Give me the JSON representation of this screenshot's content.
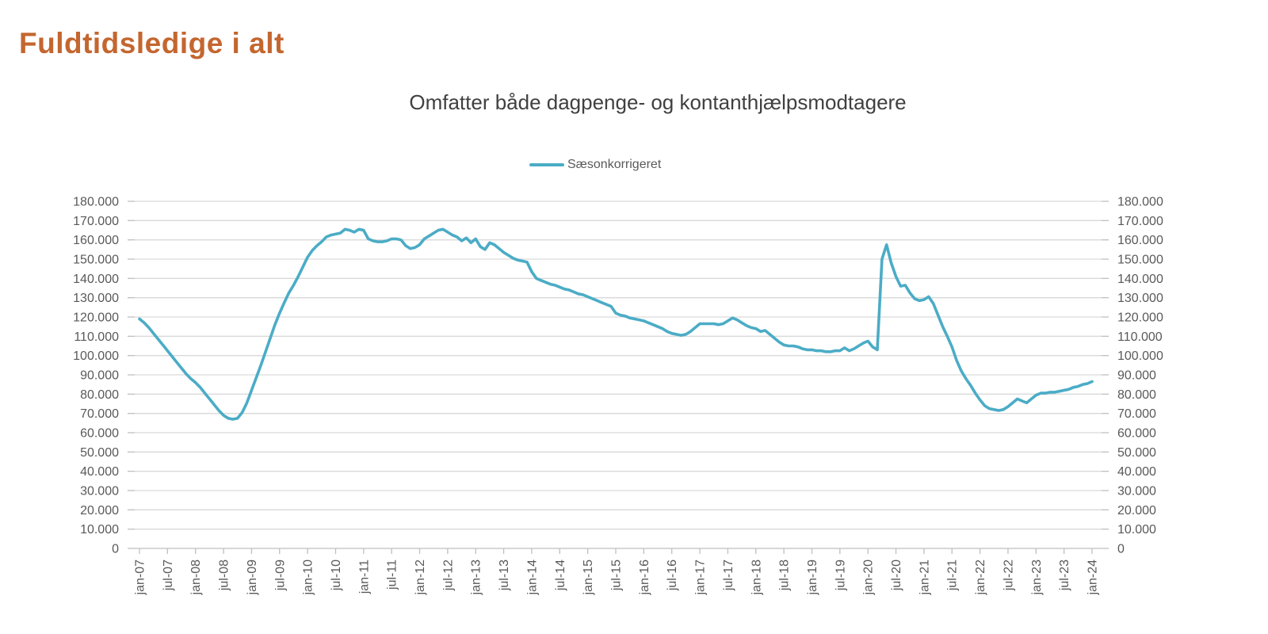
{
  "page": {
    "title": "Fuldtidsledige i alt",
    "title_color": "#C4662F"
  },
  "chart": {
    "subtitle": "Omfatter både dagpenge- og kontanthjælpsmodtagere",
    "legend": {
      "label": "Sæsonkorrigeret",
      "color": "#4BACC6"
    },
    "colors": {
      "line": "#4BACC6",
      "gridline": "#D9D9D9",
      "axis": "#BFBFBF",
      "tick_label": "#595959"
    },
    "y_axis": {
      "min": 0,
      "max": 180000,
      "step": 10000,
      "tick_labels_top_to_bottom": [
        "180.000",
        "170.000",
        "160.000",
        "150.000",
        "140.000",
        "130.000",
        "120.000",
        "110.000",
        "100.000",
        "90.000",
        "80.000",
        "70.000",
        "60.000",
        "50.000",
        "40.000",
        "30.000",
        "20.000",
        "10.000",
        "0"
      ]
    },
    "x_axis": {
      "tick_labels": [
        "jan-07",
        "jul-07",
        "jan-08",
        "jul-08",
        "jan-09",
        "jul-09",
        "jan-10",
        "jul-10",
        "jan-11",
        "jul-11",
        "jan-12",
        "jul-12",
        "jan-13",
        "jul-13",
        "jan-14",
        "jul-14",
        "jan-15",
        "jul-15",
        "jan-16",
        "jul-16",
        "jan-17",
        "jul-17",
        "jan-18",
        "jul-18",
        "jan-19",
        "jul-19",
        "jan-20",
        "jul-20",
        "jan-21",
        "jul-21",
        "jan-22",
        "jul-22",
        "jan-23",
        "jul-23",
        "jan-24"
      ],
      "tick_every_months": 6
    }
  },
  "chart_data": {
    "type": "line",
    "title": "Fuldtidsledige i alt",
    "subtitle": "Omfatter både dagpenge- og kontanthjælpsmodtagere",
    "ylim": [
      0,
      180000
    ],
    "grid": "horizontal",
    "legend_position": "top-center",
    "x_start": "jan-07",
    "x_end": "jan-24",
    "frequency": "monthly",
    "series": [
      {
        "name": "Sæsonkorrigeret",
        "color": "#4BACC6",
        "values": [
          119000,
          117000,
          114500,
          111500,
          108500,
          105500,
          102500,
          99500,
          96500,
          93500,
          90500,
          88000,
          86000,
          83500,
          80500,
          77500,
          74500,
          71500,
          69000,
          67500,
          67000,
          67500,
          70500,
          75500,
          82000,
          88500,
          95000,
          102000,
          109000,
          116000,
          122000,
          127500,
          132500,
          136500,
          141000,
          146000,
          151000,
          154500,
          157000,
          159000,
          161500,
          162500,
          163000,
          163500,
          165500,
          165000,
          164000,
          165500,
          165000,
          160500,
          159500,
          159000,
          159000,
          159500,
          160500,
          160500,
          160000,
          157000,
          155500,
          156000,
          157500,
          160500,
          162000,
          163500,
          165000,
          165500,
          164000,
          162500,
          161500,
          159500,
          161000,
          158500,
          160500,
          156500,
          155000,
          158500,
          157500,
          155500,
          153500,
          152000,
          150500,
          149500,
          149000,
          148500,
          143500,
          140000,
          139000,
          138000,
          137000,
          136500,
          135500,
          134500,
          134000,
          133000,
          132000,
          131500,
          130500,
          129500,
          128500,
          127500,
          126500,
          125500,
          122000,
          121000,
          120500,
          119500,
          119000,
          118500,
          118000,
          117000,
          116000,
          115000,
          114000,
          112500,
          111500,
          111000,
          110500,
          111000,
          112500,
          114500,
          116500,
          116500,
          116500,
          116500,
          116000,
          116500,
          118000,
          119500,
          118500,
          117000,
          115500,
          114500,
          114000,
          112500,
          113000,
          111000,
          109000,
          107000,
          105500,
          105000,
          105000,
          104500,
          103500,
          103000,
          103000,
          102500,
          102500,
          102000,
          102000,
          102500,
          102500,
          104000,
          102500,
          103500,
          105000,
          106500,
          107500,
          104500,
          103000,
          150000,
          157500,
          148000,
          141000,
          136000,
          136500,
          132500,
          129500,
          128500,
          129000,
          130500,
          127000,
          121000,
          115000,
          110000,
          104500,
          97500,
          92000,
          88000,
          84500,
          80500,
          77000,
          74000,
          72500,
          72000,
          71500,
          72000,
          73500,
          75500,
          77500,
          76500,
          75500,
          77500,
          79500,
          80500,
          80500,
          81000,
          81000,
          81500,
          82000,
          82500,
          83500,
          84000,
          85000,
          85500,
          86500
        ]
      }
    ]
  }
}
